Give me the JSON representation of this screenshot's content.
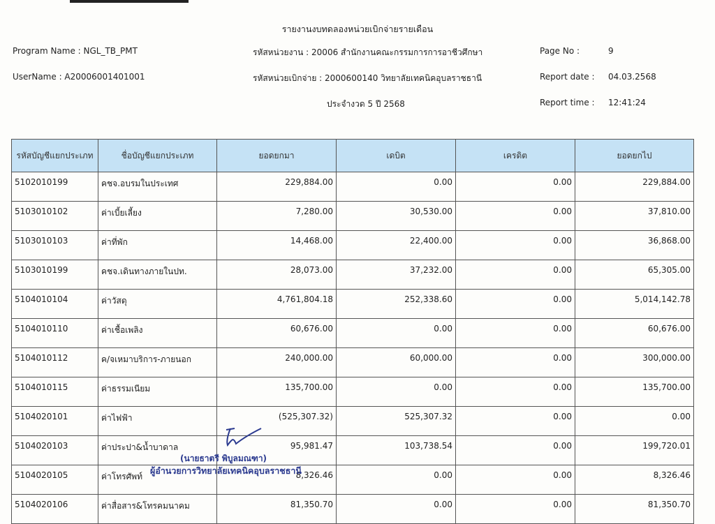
{
  "report": {
    "title": "รายงานงบทดลองหน่วยเบิกจ่ายรายเดือน",
    "program_name": "Program Name : NGL_TB_PMT",
    "user_name": "UserName : A20006001401001",
    "agency": "รหัสหน่วยงาน : 20006 สำนักงานคณะกรรมการการอาชีวศึกษา",
    "disbursing_unit": "รหัสหน่วยเบิกจ่าย : 2000600140 วิทยาลัยเทคนิคอุบลราชธานี",
    "period": "ประจำงวด 5 ปี 2568",
    "page_no_label": "Page No :",
    "page_no": "9",
    "report_date_label": "Report date :",
    "report_date": "04.03.2568",
    "report_time_label": "Report time :",
    "report_time": "12:41:24"
  },
  "table": {
    "headers": [
      "รหัสบัญชีแยกประเภท",
      "ชื่อบัญชีแยกประเภท",
      "ยอดยกมา",
      "เดบิต",
      "เครดิต",
      "ยอดยกไป"
    ],
    "rows": [
      [
        "5102010199",
        "คชจ.อบรมในประเทศ",
        "229,884.00",
        "0.00",
        "0.00",
        "229,884.00"
      ],
      [
        "5103010102",
        "ค่าเบี้ยเลี้ยง",
        "7,280.00",
        "30,530.00",
        "0.00",
        "37,810.00"
      ],
      [
        "5103010103",
        "ค่าที่พัก",
        "14,468.00",
        "22,400.00",
        "0.00",
        "36,868.00"
      ],
      [
        "5103010199",
        "คชจ.เดินทางภายในปท.",
        "28,073.00",
        "37,232.00",
        "0.00",
        "65,305.00"
      ],
      [
        "5104010104",
        "ค่าวัสดุ",
        "4,761,804.18",
        "252,338.60",
        "0.00",
        "5,014,142.78"
      ],
      [
        "5104010110",
        "ค่าเชื้อเพลิง",
        "60,676.00",
        "0.00",
        "0.00",
        "60,676.00"
      ],
      [
        "5104010112",
        "ค/จเหมาบริการ-ภายนอก",
        "240,000.00",
        "60,000.00",
        "0.00",
        "300,000.00"
      ],
      [
        "5104010115",
        "ค่าธรรมเนียม",
        "135,700.00",
        "0.00",
        "0.00",
        "135,700.00"
      ],
      [
        "5104020101",
        "ค่าไฟฟ้า",
        "(525,307.32)",
        "525,307.32",
        "0.00",
        "0.00"
      ],
      [
        "5104020103",
        "ค่าประปา&น้ำบาดาล",
        "95,981.47",
        "103,738.54",
        "0.00",
        "199,720.01"
      ],
      [
        "5104020105",
        "ค่าโทรศัพท์",
        "8,326.46",
        "0.00",
        "0.00",
        "8,326.46"
      ],
      [
        "5104020106",
        "ค่าสื่อสาร&โทรคมนาคม",
        "81,350.70",
        "0.00",
        "0.00",
        "81,350.70"
      ]
    ]
  },
  "stamp": {
    "name": "(นายธาตรี  พิบูลมณฑา)",
    "position": "ผู้อำนวยการวิทยาลัยเทคนิคอุบลราชธานี"
  },
  "colors": {
    "header_bg": "#c5e2f5",
    "stamp_ink": "#2b3a8f"
  }
}
